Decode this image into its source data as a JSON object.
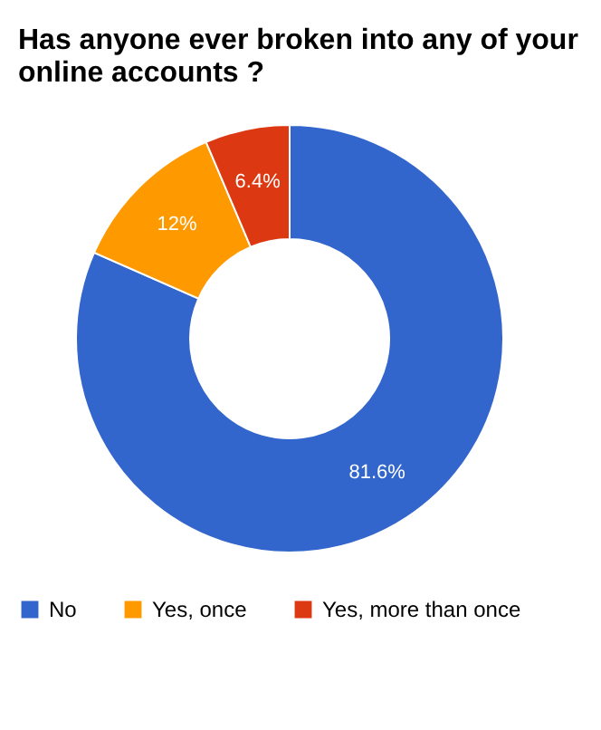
{
  "chart_data": {
    "type": "donut",
    "title": "Has anyone ever broken into any of your online accounts ?",
    "categories": [
      "No",
      "Yes, once",
      "Yes, more than once"
    ],
    "values": [
      81.6,
      12,
      6.4
    ],
    "colors": [
      "#3366cc",
      "#ff9900",
      "#dc3912"
    ],
    "value_labels": [
      "81.6%",
      "12%",
      "6.4%"
    ],
    "legend": "bottom"
  }
}
